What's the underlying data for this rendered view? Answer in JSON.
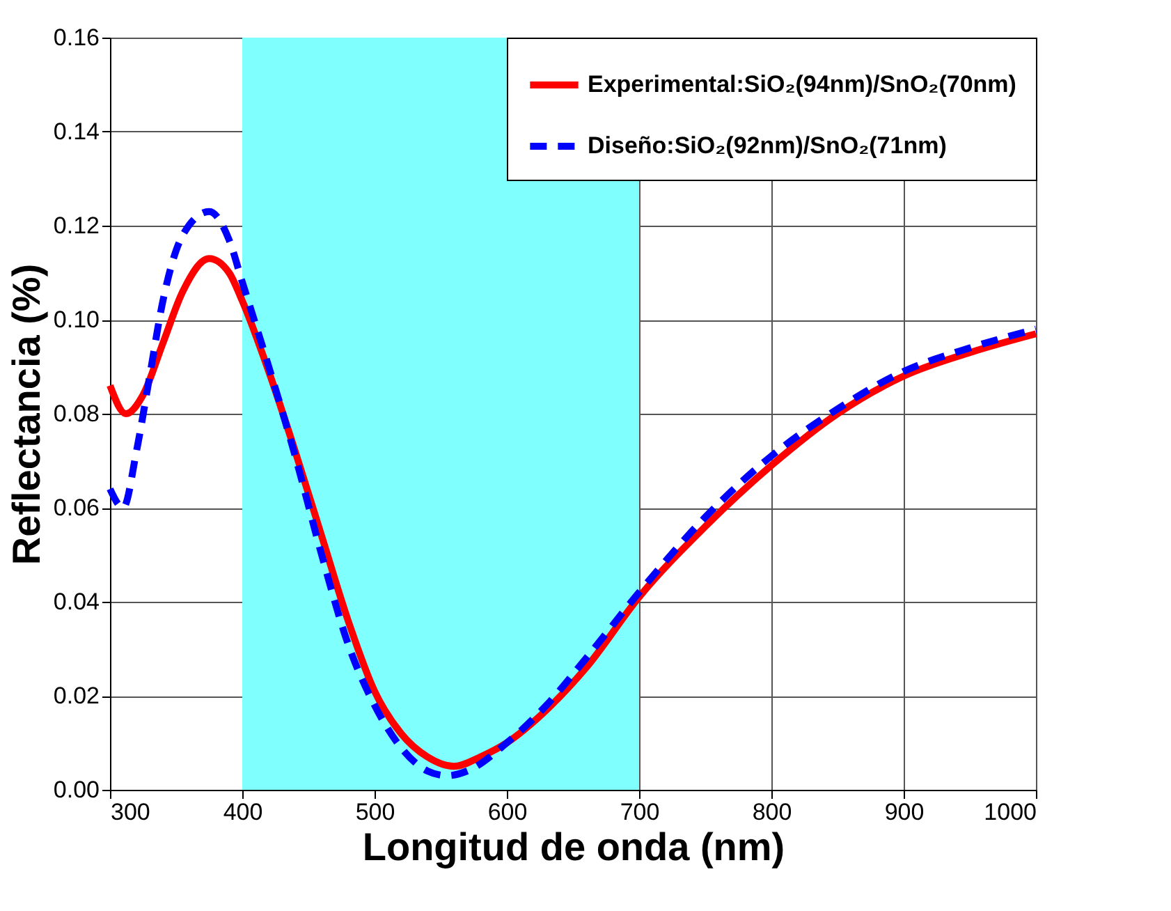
{
  "chart_data": {
    "type": "line",
    "xlabel": "Longitud de onda (nm)",
    "ylabel": "Reflectancia (%)",
    "xlim": [
      300,
      1000
    ],
    "xticks": [
      300,
      400,
      500,
      600,
      700,
      800,
      900,
      1000
    ],
    "ylim": [
      0,
      0.16
    ],
    "yticks": [
      {
        "value": 0,
        "label": "0.00"
      },
      {
        "value": 0.02,
        "label": "0.02"
      },
      {
        "value": 0.04,
        "label": "0.04"
      },
      {
        "value": 0.06,
        "label": "0.06"
      },
      {
        "value": 0.08,
        "label": "0.08"
      },
      {
        "value": 0.1,
        "label": "0.10"
      },
      {
        "value": 0.12,
        "label": "0.12"
      },
      {
        "value": 0.14,
        "label": "0.14"
      },
      {
        "value": 0.16,
        "label": "0.16"
      }
    ],
    "grid": true,
    "legend": "top right",
    "bands": [
      {
        "axis": "x",
        "from": 400,
        "to": 700,
        "color": "#80ffff"
      }
    ],
    "series": [
      {
        "name": "Experimental:SiO₂(94nm)/SnO₂(70nm)",
        "color": "#ff0000",
        "line_style": "solid",
        "x": [
          300,
          312,
          325,
          340,
          355,
          375,
          390,
          400,
          420,
          440,
          460,
          480,
          500,
          520,
          540,
          560,
          580,
          600,
          630,
          660,
          700,
          750,
          800,
          850,
          900,
          950,
          1000
        ],
        "values": [
          0.086,
          0.08,
          0.084,
          0.095,
          0.106,
          0.113,
          0.11,
          0.104,
          0.089,
          0.072,
          0.054,
          0.036,
          0.021,
          0.012,
          0.007,
          0.005,
          0.007,
          0.01,
          0.017,
          0.026,
          0.041,
          0.056,
          0.069,
          0.08,
          0.088,
          0.093,
          0.097
        ]
      },
      {
        "name": "Diseño:SiO₂(92nm)/SnO₂(71nm)",
        "color": "#0000ff",
        "line_style": "dashed",
        "x": [
          300,
          310,
          320,
          330,
          340,
          355,
          375,
          390,
          400,
          420,
          440,
          460,
          480,
          500,
          520,
          540,
          555,
          570,
          600,
          630,
          660,
          700,
          750,
          800,
          850,
          900,
          950,
          1000
        ],
        "values": [
          0.064,
          0.06,
          0.072,
          0.088,
          0.104,
          0.118,
          0.123,
          0.117,
          0.108,
          0.09,
          0.071,
          0.05,
          0.031,
          0.018,
          0.009,
          0.004,
          0.003,
          0.004,
          0.01,
          0.018,
          0.028,
          0.042,
          0.058,
          0.071,
          0.081,
          0.089,
          0.094,
          0.098
        ]
      }
    ]
  }
}
